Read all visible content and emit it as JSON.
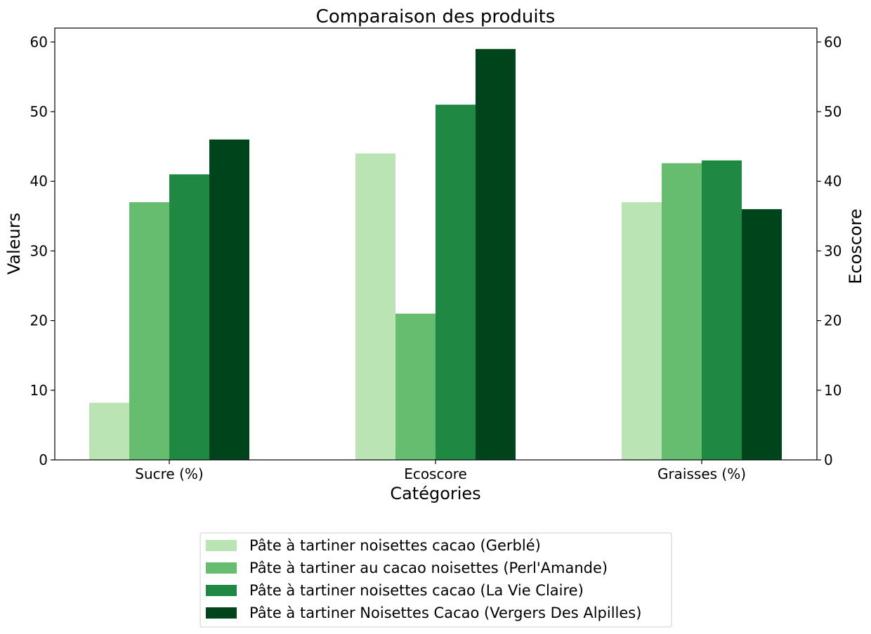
{
  "chart_data": {
    "type": "bar",
    "title": "Comparaison des produits",
    "xlabel": "Catégories",
    "ylabel": "Valeurs",
    "y2label": "Ecoscore",
    "categories": [
      "Sucre (%)",
      "Ecoscore",
      "Graisses (%)"
    ],
    "ylim": [
      0,
      62
    ],
    "yticks": [
      0,
      10,
      20,
      30,
      40,
      50,
      60
    ],
    "y2ticks": [
      0,
      10,
      20,
      30,
      40,
      50,
      60
    ],
    "grid": false,
    "legend_position": "bottom-center",
    "series": [
      {
        "name": "Pâte à tartiner noisettes cacao (Gerblé)",
        "color": "#bae4b3",
        "values": [
          8.2,
          44,
          37
        ]
      },
      {
        "name": "Pâte à tartiner au cacao noisettes (Perl'Amande)",
        "color": "#66bd6f",
        "values": [
          37,
          21,
          42.6
        ]
      },
      {
        "name": "Pâte à tartiner noisettes cacao (La Vie Claire)",
        "color": "#1f8843",
        "values": [
          41,
          51,
          43
        ]
      },
      {
        "name": "Pâte à tartiner Noisettes Cacao (Vergers Des Alpilles)",
        "color": "#00441b",
        "values": [
          46,
          59,
          36
        ]
      }
    ]
  }
}
